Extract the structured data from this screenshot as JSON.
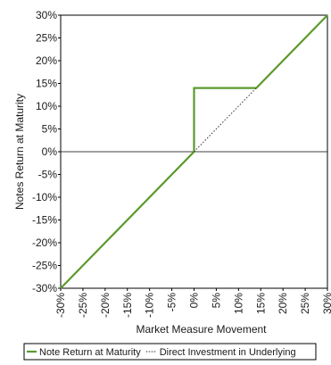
{
  "chart_data": {
    "type": "line",
    "xlabel": "Market Measure Movement",
    "ylabel": "Notes Return at Maturity",
    "xlim": [
      -30,
      30
    ],
    "ylim": [
      -30,
      30
    ],
    "x_ticks": [
      -30,
      -25,
      -20,
      -15,
      -10,
      -5,
      0,
      5,
      10,
      15,
      20,
      25,
      30
    ],
    "y_ticks": [
      -30,
      -25,
      -20,
      -15,
      -10,
      -5,
      0,
      5,
      10,
      15,
      20,
      25,
      30
    ],
    "x_tick_labels": [
      "-30%",
      "-25%",
      "-20%",
      "-15%",
      "-10%",
      "-5%",
      "0%",
      "5%",
      "10%",
      "15%",
      "20%",
      "25%",
      "30%"
    ],
    "y_tick_labels": [
      "-30%",
      "-25%",
      "-20%",
      "-15%",
      "-10%",
      "-5%",
      "0%",
      "5%",
      "10%",
      "15%",
      "20%",
      "25%",
      "30%"
    ],
    "grid": false,
    "legend_position": "bottom",
    "series": [
      {
        "name": "Note Return at Maturity",
        "color": "#5b9a2c",
        "style": "solid",
        "x": [
          -30,
          0,
          0,
          14,
          30
        ],
        "y": [
          -30,
          0,
          14,
          14,
          30
        ]
      },
      {
        "name": "Direct Investment in Underlying",
        "color": "#333333",
        "style": "dotted",
        "x": [
          0,
          14
        ],
        "y": [
          0,
          14
        ]
      }
    ]
  }
}
